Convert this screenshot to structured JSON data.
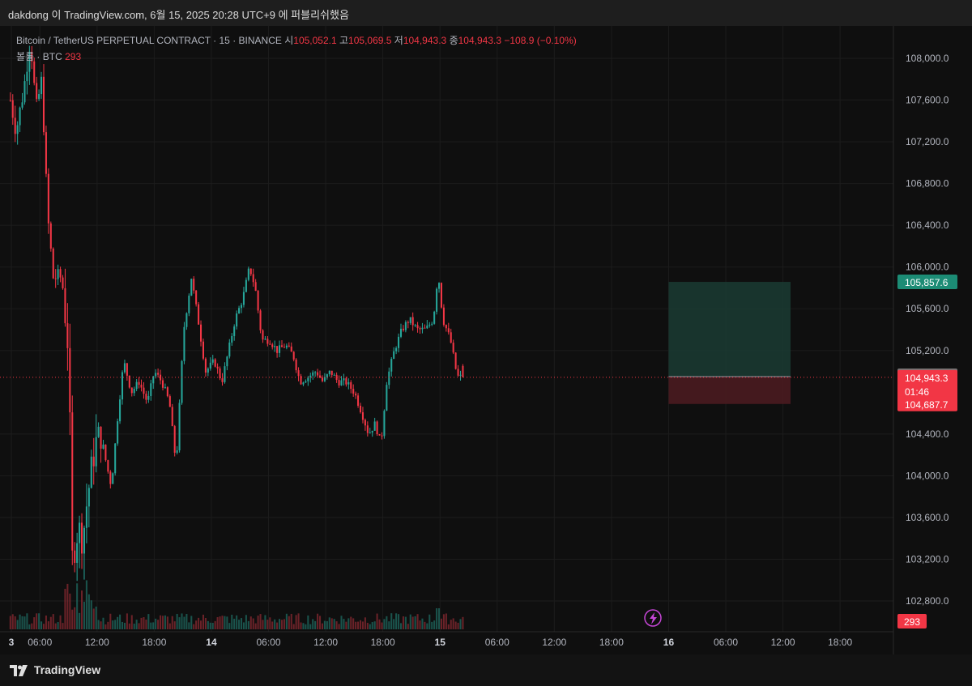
{
  "header": {
    "text": "dakdong 이 TradingView.com, 6월 15, 2025 20:28 UTC+9 에 퍼블리쉬했음"
  },
  "legend": {
    "symbol": "Bitcoin / TetherUS PERPETUAL CONTRACT · 15 · BINANCE",
    "open_label": "시",
    "open": "105,052.1",
    "high_label": "고",
    "high": "105,069.5",
    "low_label": "저",
    "low": "104,943.3",
    "close_label": "종",
    "close": "104,943.3",
    "change": "−108.9 (−0.10%)",
    "volume_label": "볼륨 · BTC",
    "volume": "293"
  },
  "footer": {
    "brand": "TradingView"
  },
  "colors": {
    "up": "#26a69a",
    "down": "#f23645",
    "background": "#0f0f0f",
    "grid": "#1c1c1c",
    "axis_text": "#b2b5be"
  },
  "chart_data": {
    "type": "candlestick",
    "y_ticks": [
      "108,000.0",
      "107,600.0",
      "107,200.0",
      "106,800.0",
      "106,400.0",
      "106,000.0",
      "105,600.0",
      "105,200.0",
      "104,400.0",
      "104,000.0",
      "103,600.0",
      "103,200.0",
      "102,800.0"
    ],
    "y_tick_values": [
      108000,
      107600,
      107200,
      106800,
      106400,
      106000,
      105600,
      105200,
      104400,
      104000,
      103600,
      103200,
      102800
    ],
    "ylim": [
      102600,
      108300
    ],
    "x_ticks": [
      "3",
      "06:00",
      "12:00",
      "18:00",
      "14",
      "06:00",
      "12:00",
      "18:00",
      "15",
      "06:00",
      "12:00",
      "18:00",
      "16",
      "06:00",
      "12:00",
      "18:00"
    ],
    "x_tick_hours": [
      3,
      6,
      12,
      18,
      24,
      30,
      36,
      42,
      48,
      54,
      60,
      66,
      72,
      78,
      84,
      90
    ],
    "x_range_hours": [
      2.9,
      95.6
    ],
    "price_waypoints": [
      [
        2.9,
        107600
      ],
      [
        3.5,
        107300
      ],
      [
        4.3,
        107700
      ],
      [
        5.0,
        108200
      ],
      [
        5.6,
        107500
      ],
      [
        6.2,
        107800
      ],
      [
        6.8,
        106500
      ],
      [
        7.4,
        105900
      ],
      [
        8.3,
        105900
      ],
      [
        9.0,
        105200
      ],
      [
        9.4,
        103200
      ],
      [
        10.0,
        103500
      ],
      [
        10.5,
        103400
      ],
      [
        11.0,
        103800
      ],
      [
        11.8,
        104300
      ],
      [
        12.4,
        104400
      ],
      [
        13.0,
        104100
      ],
      [
        13.5,
        103900
      ],
      [
        14.2,
        104600
      ],
      [
        14.8,
        105100
      ],
      [
        15.6,
        104800
      ],
      [
        16.4,
        104900
      ],
      [
        17.3,
        104700
      ],
      [
        18.0,
        105000
      ],
      [
        18.8,
        104900
      ],
      [
        19.6,
        104700
      ],
      [
        20.3,
        104100
      ],
      [
        21.1,
        105400
      ],
      [
        21.9,
        105900
      ],
      [
        22.6,
        105500
      ],
      [
        23.4,
        105000
      ],
      [
        24.3,
        105100
      ],
      [
        25.1,
        104900
      ],
      [
        25.8,
        105200
      ],
      [
        26.5,
        105500
      ],
      [
        27.3,
        105700
      ],
      [
        28.0,
        106000
      ],
      [
        28.6,
        105800
      ],
      [
        29.3,
        105300
      ],
      [
        30.1,
        105300
      ],
      [
        30.9,
        105200
      ],
      [
        31.8,
        105250
      ],
      [
        32.6,
        105150
      ],
      [
        33.3,
        104900
      ],
      [
        34.2,
        104950
      ],
      [
        35.0,
        105000
      ],
      [
        35.7,
        104900
      ],
      [
        36.5,
        105000
      ],
      [
        37.3,
        104900
      ],
      [
        38.1,
        104900
      ],
      [
        39.0,
        104800
      ],
      [
        39.8,
        104600
      ],
      [
        40.5,
        104400
      ],
      [
        41.2,
        104500
      ],
      [
        41.8,
        104300
      ],
      [
        42.4,
        104900
      ],
      [
        43.2,
        105200
      ],
      [
        44.0,
        105400
      ],
      [
        44.8,
        105500
      ],
      [
        45.6,
        105400
      ],
      [
        46.5,
        105400
      ],
      [
        47.3,
        105500
      ],
      [
        47.8,
        105950
      ],
      [
        48.3,
        105500
      ],
      [
        49.1,
        105300
      ],
      [
        49.8,
        104950
      ],
      [
        50.4,
        104943.3
      ]
    ],
    "last_price": "104,943.3",
    "countdown": "01:46",
    "gray_level": "104,949.6",
    "long_position": {
      "entry": 104949.6,
      "target": 105857.6,
      "stop": 104687.7,
      "target_label": "105,857.6",
      "stop_label": "104,687.7",
      "start_hours": 72.0,
      "end_hours": 84.8
    },
    "volume_badge": "293"
  }
}
